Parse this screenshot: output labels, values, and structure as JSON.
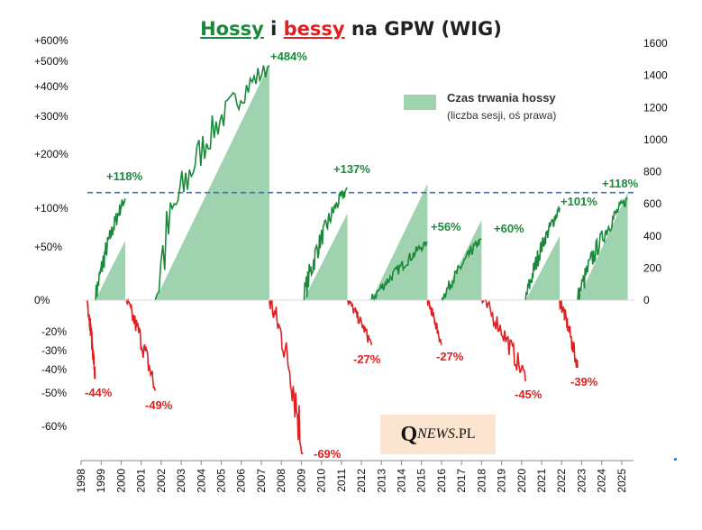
{
  "title": {
    "part_hossy": "Hossy",
    "part_i": " i ",
    "part_bessy": "bessy",
    "part_rest": " na GPW (WIG)",
    "color_hossy": "#1a8a3a",
    "color_bessy": "#e02020",
    "color_rest": "#222222"
  },
  "legend": {
    "label": "Czas trwania hossy",
    "sublabel": "(liczba sesji, oś prawa)",
    "color": "#9fd2ae"
  },
  "logo": {
    "q": "Q",
    "news": "NEWS",
    "pl": ".PL"
  },
  "chart_data": {
    "type": "line",
    "x_ticks": [
      "1998",
      "1999",
      "2000",
      "2001",
      "2002",
      "2003",
      "2004",
      "2005",
      "2006",
      "2007",
      "2008",
      "2009",
      "2010",
      "2011",
      "2012",
      "2013",
      "2014",
      "2015",
      "2016",
      "2017",
      "2018",
      "2019",
      "2020",
      "2021",
      "2022",
      "2023",
      "2024",
      "2025"
    ],
    "left_axis_ticks_upper": [
      "+600%",
      "+500%",
      "+400%",
      "+300%",
      "+200%",
      "+100%",
      "+50%",
      "0%"
    ],
    "left_axis_ticks_lower": [
      "-20%",
      "-30%",
      "-40%",
      "-50%",
      "-60%"
    ],
    "right_axis_ticks": [
      "1600",
      "1400",
      "1200",
      "1000",
      "800",
      "600",
      "400",
      "200",
      "0"
    ],
    "right_ylim": [
      0,
      1600
    ],
    "reference_line_right_value": 670,
    "bull_markets": [
      {
        "start": 1998.7,
        "end": 2000.2,
        "peak_pct": 118,
        "label": "+118%",
        "duration_sessions": 370
      },
      {
        "start": 2001.7,
        "end": 2007.4,
        "peak_pct": 484,
        "label": "+484%",
        "duration_sessions": 1470
      },
      {
        "start": 2009.1,
        "end": 2011.3,
        "peak_pct": 137,
        "label": "+137%",
        "duration_sessions": 540
      },
      {
        "start": 2012.5,
        "end": 2015.3,
        "peak_pct": 56,
        "label": "+56%",
        "duration_sessions": 725
      },
      {
        "start": 2016.0,
        "end": 2018.0,
        "peak_pct": 60,
        "label": "+60%",
        "duration_sessions": 500
      },
      {
        "start": 2020.2,
        "end": 2021.9,
        "peak_pct": 101,
        "label": "+101%",
        "duration_sessions": 400
      },
      {
        "start": 2022.8,
        "end": 2025.3,
        "peak_pct": 118,
        "label": "+118%",
        "duration_sessions": 670
      }
    ],
    "bear_markets": [
      {
        "start": 1998.3,
        "end": 1998.7,
        "trough_pct": -44,
        "label": "-44%"
      },
      {
        "start": 2000.2,
        "end": 2001.7,
        "trough_pct": -49,
        "label": "-49%"
      },
      {
        "start": 2007.4,
        "end": 2009.1,
        "trough_pct": -69,
        "label": "-69%"
      },
      {
        "start": 2011.3,
        "end": 2012.5,
        "trough_pct": -27,
        "label": "-27%"
      },
      {
        "start": 2015.3,
        "end": 2016.0,
        "trough_pct": -27,
        "label": "-27%"
      },
      {
        "start": 2018.0,
        "end": 2020.2,
        "trough_pct": -45,
        "label": "-45%"
      },
      {
        "start": 2021.9,
        "end": 2022.8,
        "trough_pct": -39,
        "label": "-39%"
      }
    ],
    "colors": {
      "bull": "#1a8a3a",
      "bear": "#e02020",
      "area": "#9fd2ae",
      "reference": "#3a6fc4"
    }
  }
}
